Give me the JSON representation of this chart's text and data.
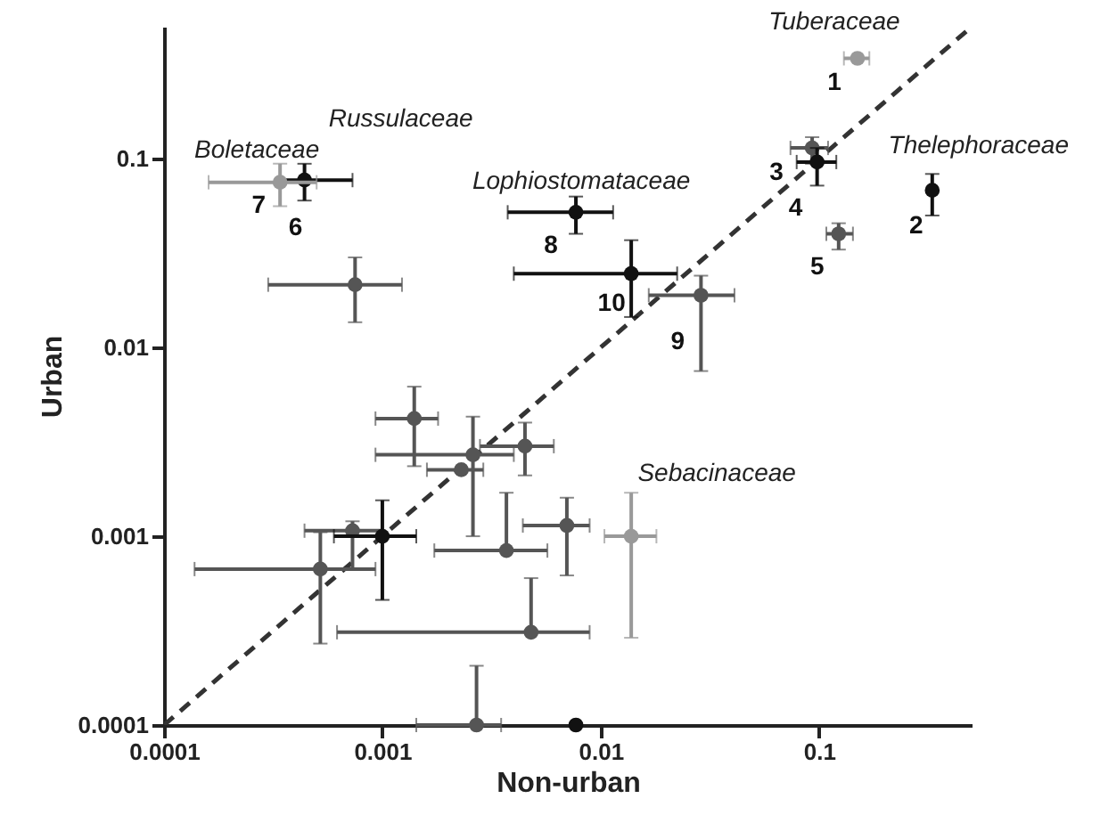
{
  "chart_data": {
    "type": "scatter",
    "xlabel": "Non-urban",
    "ylabel": "Urban",
    "log": "xy",
    "marker": "circle",
    "line_style": "dashed",
    "xlim": [
      0.0001,
      0.5
    ],
    "ylim": [
      0.0001,
      0.5
    ],
    "xticks": [
      0.0001,
      0.001,
      0.01,
      0.1
    ],
    "yticks": [
      0.0001,
      0.001,
      0.01,
      0.1
    ],
    "series": [
      {
        "type": "line",
        "marker": "none",
        "color": "#333333",
        "x": [
          0.0001,
          0.5
        ],
        "values": [
          0.0001,
          0.5
        ]
      },
      {
        "color": "#555555",
        "x": [
          0.093,
          0.123,
          0.00075,
          0.0288,
          0.0014,
          0.0045,
          0.0026,
          0.0023,
          0.00073,
          0.00052,
          0.0037,
          0.007,
          0.0048,
          0.0027
        ],
        "values": [
          0.114,
          0.04,
          0.0215,
          0.0189,
          0.0042,
          0.003,
          0.0027,
          0.00225,
          0.00107,
          0.00067,
          0.00084,
          0.00114,
          0.00031,
          0.0001
        ],
        "xerrors": [
          [
            0.074,
            0.11
          ],
          [
            0.108,
            0.143
          ],
          [
            0.0003,
            0.00123
          ],
          [
            0.0166,
            0.041
          ],
          [
            0.00093,
            0.0018
          ],
          [
            0.0028,
            0.0061
          ],
          [
            0.00093,
            0.004
          ],
          [
            0.0016,
            0.0029
          ],
          [
            0.00044,
            0.001
          ],
          [
            0.000138,
            0.00093
          ],
          [
            0.00173,
            0.0057
          ],
          [
            0.0044,
            0.0089
          ],
          [
            0.00062,
            0.0089
          ],
          [
            0.00143,
            0.0035
          ]
        ],
        "errors": [
          [
            0.094,
            0.13
          ],
          [
            0.033,
            0.0455
          ],
          [
            0.0136,
            0.03
          ],
          [
            0.0075,
            0.024
          ],
          [
            0.00235,
            0.0062
          ],
          [
            0.0021,
            0.004
          ],
          [
            0.001,
            0.0043
          ],
          null,
          [
            0.00067,
            0.0012
          ],
          [
            0.00027,
            0.00105
          ],
          [
            0.00084,
            0.0017
          ],
          [
            0.00062,
            0.0016
          ],
          [
            0.00031,
            0.0006
          ],
          [
            0.0001,
            0.000206
          ]
        ]
      },
      {
        "color": "#111111",
        "x": [
          0.33,
          0.098,
          0.00044,
          0.0077,
          0.0138,
          0.001,
          0.0077
        ],
        "values": [
          0.068,
          0.096,
          0.077,
          0.052,
          0.0246,
          0.001,
          0.0001
        ],
        "xerrors": [
          null,
          [
            0.079,
            0.12
          ],
          [
            0.00034,
            0.00073
          ],
          [
            0.00375,
            0.0114
          ],
          [
            0.004,
            0.0224
          ],
          [
            0.0006,
            0.00143
          ],
          null
        ],
        "errors": [
          [
            0.05,
            0.083
          ],
          [
            0.072,
            0.114
          ],
          [
            0.06,
            0.094
          ],
          [
            0.04,
            0.063
          ],
          [
            0.0145,
            0.037
          ],
          [
            0.00046,
            0.00155
          ],
          null
        ]
      },
      {
        "color": "#999999",
        "x": [
          0.15,
          0.00034,
          0.0138
        ],
        "values": [
          0.34,
          0.075,
          0.001
        ],
        "xerrors": [
          [
            0.13,
            0.17
          ],
          [
            0.00016,
            0.0005
          ],
          [
            0.0104,
            0.018
          ]
        ],
        "errors": [
          null,
          [
            0.056,
            0.094
          ],
          [
            0.00029,
            0.0017
          ]
        ]
      }
    ],
    "annotations": [
      {
        "text": "1",
        "x": 0.15,
        "y": 0.34
      },
      {
        "text": "2",
        "x": 0.33,
        "y": 0.068
      },
      {
        "text": "3",
        "x": 0.093,
        "y": 0.114
      },
      {
        "text": "4",
        "x": 0.098,
        "y": 0.096
      },
      {
        "text": "5",
        "x": 0.123,
        "y": 0.04
      },
      {
        "text": "6",
        "x": 0.00044,
        "y": 0.077
      },
      {
        "text": "7",
        "x": 0.00034,
        "y": 0.075
      },
      {
        "text": "8",
        "x": 0.0077,
        "y": 0.052
      },
      {
        "text": "9",
        "x": 0.0288,
        "y": 0.0189
      },
      {
        "text": "10",
        "x": 0.0138,
        "y": 0.0246
      },
      {
        "text": "Tuberaceae",
        "x": 0.15,
        "y": 0.34
      },
      {
        "text": "Thelephoraceae",
        "x": 0.33,
        "y": 0.068
      },
      {
        "text": "Russulaceae",
        "x": 0.00044,
        "y": 0.077
      },
      {
        "text": "Boletaceae",
        "x": 0.00034,
        "y": 0.075
      },
      {
        "text": "Lophiostomataceae",
        "x": 0.0077,
        "y": 0.052
      },
      {
        "text": "Sebacinaceae",
        "x": 0.0138,
        "y": 0.001
      }
    ]
  }
}
